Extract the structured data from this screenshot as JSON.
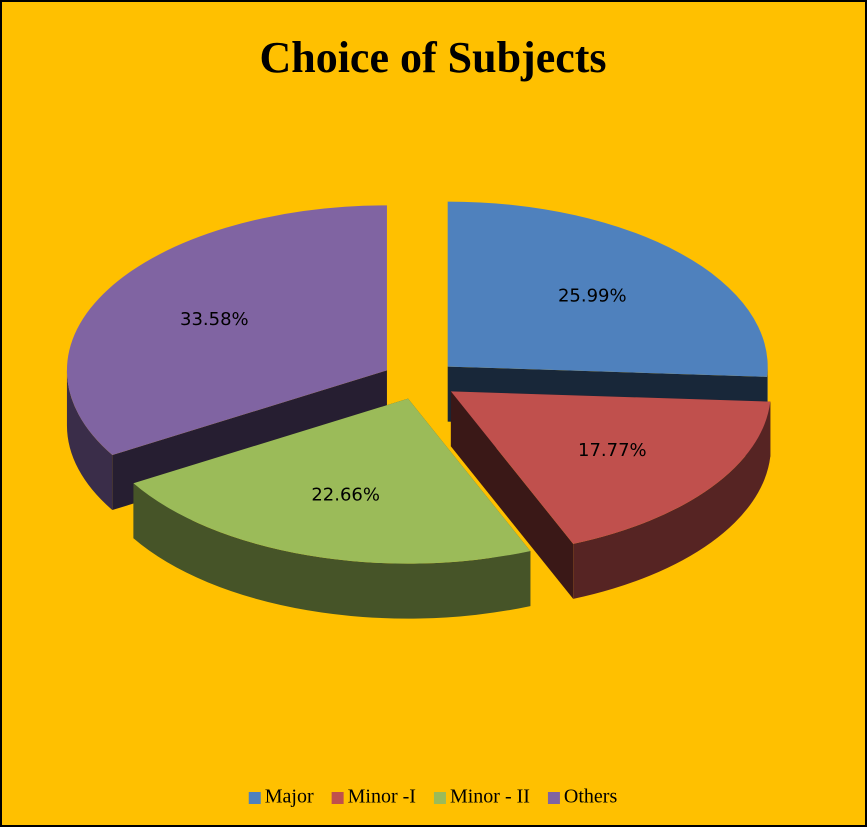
{
  "chart_data": {
    "type": "pie",
    "title": "Choice of Subjects",
    "categories": [
      "Major",
      "Minor -I",
      "Minor - II",
      "Others"
    ],
    "values": [
      25.99,
      17.77,
      22.66,
      33.58
    ],
    "value_labels": [
      "25.99%",
      "17.77%",
      "22.66%",
      "33.58%"
    ],
    "colors": [
      "#4f81bd",
      "#c0504d",
      "#9bbb59",
      "#8064a2"
    ],
    "legend": "bottom"
  }
}
